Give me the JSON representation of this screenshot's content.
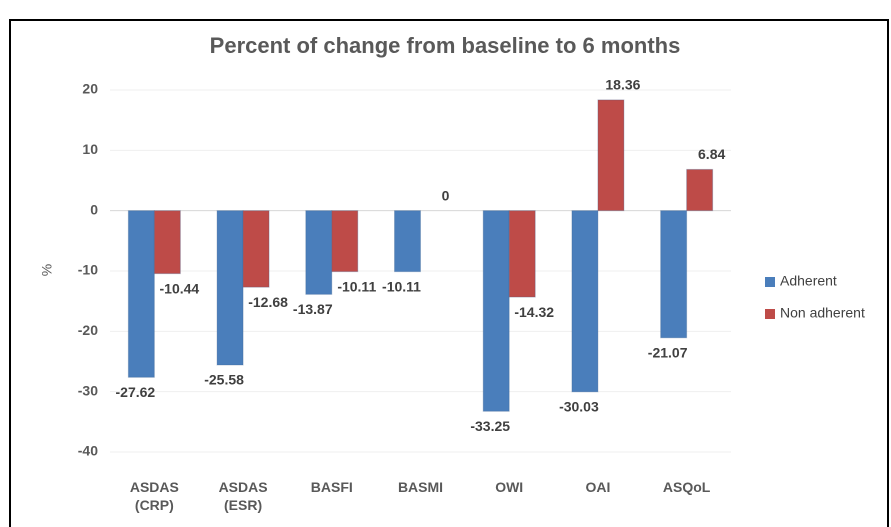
{
  "chart_data": {
    "type": "bar",
    "title": "Percent of change from baseline to 6 months",
    "y_label": "%",
    "categories": [
      "ASDAS (CRP)",
      "ASDAS (ESR)",
      "BASFI",
      "BASMI",
      "OWI",
      "OAI",
      "ASQoL"
    ],
    "series": [
      {
        "name": "Adherent",
        "color": "#4a7ebb",
        "values": [
          -27.62,
          -25.58,
          -13.87,
          -10.11,
          -33.25,
          -30.03,
          -21.07
        ]
      },
      {
        "name": "Non adherent",
        "color": "#be4b48",
        "values": [
          -10.44,
          -12.68,
          -10.11,
          0,
          -14.32,
          18.36,
          6.84
        ]
      }
    ],
    "ylim": [
      -40,
      20
    ],
    "yticks": [
      -40,
      -30,
      -20,
      -10,
      0,
      10,
      20
    ],
    "grid": true,
    "legend": "right"
  }
}
